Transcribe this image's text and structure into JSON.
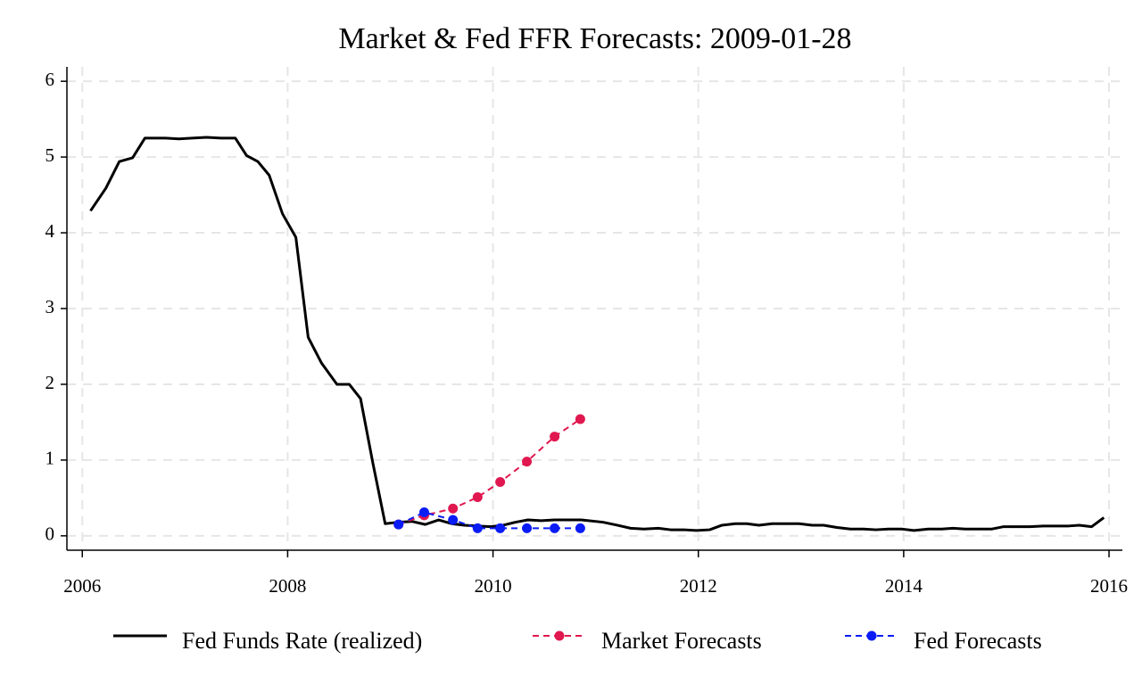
{
  "chart_data": {
    "type": "line",
    "title": "Market & Fed FFR Forecasts: 2009-01-28",
    "xlim": [
      2005.85,
      2016.13
    ],
    "ylim": [
      -0.19,
      6.19
    ],
    "xticks": [
      2006,
      2008,
      2010,
      2012,
      2014,
      2016
    ],
    "yticks": [
      0,
      1,
      2,
      3,
      4,
      5,
      6
    ],
    "grid": true,
    "legend": "bottom",
    "series": [
      {
        "name": "Fed Funds Rate (realized)",
        "color": "#000000",
        "dash": "solid",
        "marker": false,
        "x": [
          2006.08,
          2006.23,
          2006.36,
          2006.49,
          2006.61,
          2006.81,
          2006.94,
          2007.07,
          2007.21,
          2007.35,
          2007.49,
          2007.6,
          2007.71,
          2007.82,
          2007.95,
          2008.08,
          2008.2,
          2008.33,
          2008.48,
          2008.6,
          2008.71,
          2008.83,
          2008.95,
          2009.08,
          2009.21,
          2009.34,
          2009.47,
          2009.6,
          2009.72,
          2009.85,
          2009.98,
          2010.1,
          2010.22,
          2010.34,
          2010.47,
          2010.6,
          2010.86,
          2011.07,
          2011.21,
          2011.34,
          2011.47,
          2011.61,
          2011.73,
          2011.86,
          2011.98,
          2012.11,
          2012.23,
          2012.36,
          2012.47,
          2012.59,
          2012.72,
          2012.85,
          2012.98,
          2013.11,
          2013.22,
          2013.35,
          2013.48,
          2013.61,
          2013.73,
          2013.85,
          2013.98,
          2014.1,
          2014.24,
          2014.37,
          2014.48,
          2014.6,
          2014.74,
          2014.86,
          2014.97,
          2015.1,
          2015.23,
          2015.36,
          2015.49,
          2015.61,
          2015.71,
          2015.83,
          2015.95
        ],
        "values": [
          4.29,
          4.59,
          4.94,
          4.99,
          5.25,
          5.25,
          5.24,
          5.25,
          5.26,
          5.25,
          5.25,
          5.02,
          4.94,
          4.76,
          4.25,
          3.94,
          2.62,
          2.28,
          2.0,
          2.0,
          1.81,
          0.96,
          0.16,
          0.18,
          0.19,
          0.15,
          0.21,
          0.16,
          0.14,
          0.13,
          0.12,
          0.14,
          0.18,
          0.21,
          0.2,
          0.21,
          0.21,
          0.18,
          0.14,
          0.1,
          0.09,
          0.1,
          0.08,
          0.08,
          0.07,
          0.08,
          0.14,
          0.16,
          0.16,
          0.14,
          0.16,
          0.16,
          0.16,
          0.14,
          0.14,
          0.11,
          0.09,
          0.09,
          0.08,
          0.09,
          0.09,
          0.07,
          0.09,
          0.09,
          0.1,
          0.09,
          0.09,
          0.09,
          0.12,
          0.12,
          0.12,
          0.13,
          0.13,
          0.13,
          0.14,
          0.12,
          0.24
        ]
      },
      {
        "name": "Market Forecasts",
        "color": "#e0184f",
        "dash": "dashed",
        "marker": true,
        "x": [
          2009.08,
          2009.33,
          2009.61,
          2009.85,
          2010.07,
          2010.33,
          2010.6,
          2010.85
        ],
        "values": [
          0.15,
          0.27,
          0.36,
          0.51,
          0.71,
          0.98,
          1.31,
          1.54
        ]
      },
      {
        "name": "Fed Forecasts",
        "color": "#0a1cf5",
        "dash": "dashed",
        "marker": true,
        "x": [
          2009.08,
          2009.33,
          2009.61,
          2009.85,
          2010.07,
          2010.33,
          2010.6,
          2010.85
        ],
        "values": [
          0.15,
          0.31,
          0.21,
          0.1,
          0.1,
          0.1,
          0.1,
          0.1
        ]
      }
    ]
  }
}
